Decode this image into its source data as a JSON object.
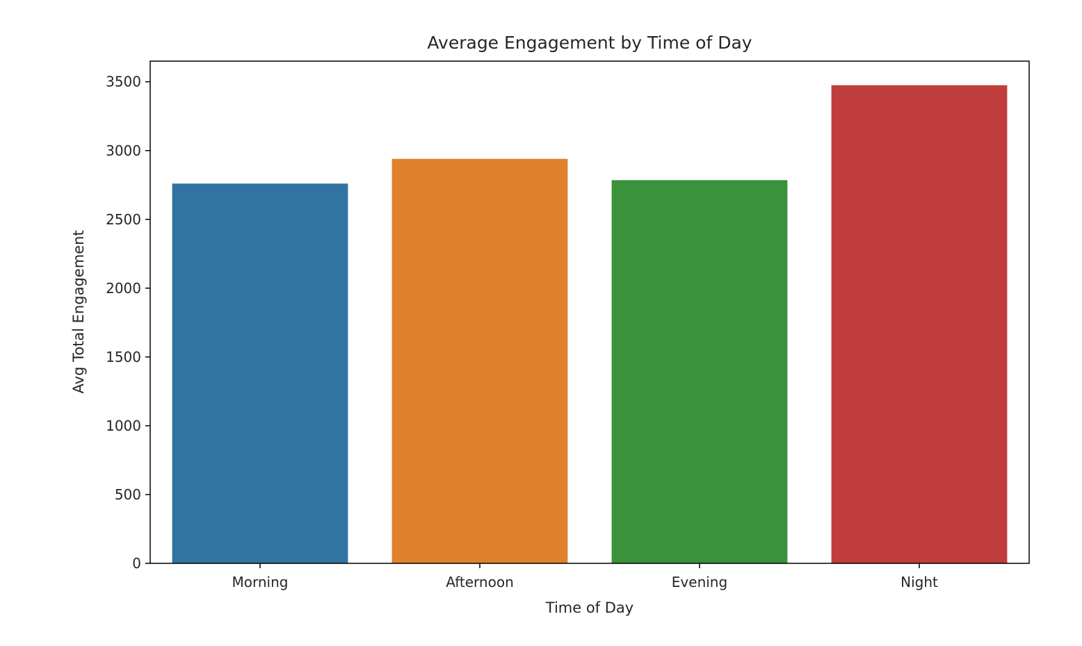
{
  "chart_data": {
    "type": "bar",
    "title": "Average Engagement by Time of Day",
    "xlabel": "Time of Day",
    "ylabel": "Avg Total Engagement",
    "categories": [
      "Morning",
      "Afternoon",
      "Evening",
      "Night"
    ],
    "values": [
      2760,
      2940,
      2785,
      3475
    ],
    "colors": [
      "#3274a1",
      "#e1812c",
      "#3a923a",
      "#c03d3e"
    ],
    "ylim": [
      0,
      3650
    ],
    "yticks": [
      0,
      500,
      1000,
      1500,
      2000,
      2500,
      3000,
      3500
    ],
    "grid": false,
    "legend": "none"
  }
}
